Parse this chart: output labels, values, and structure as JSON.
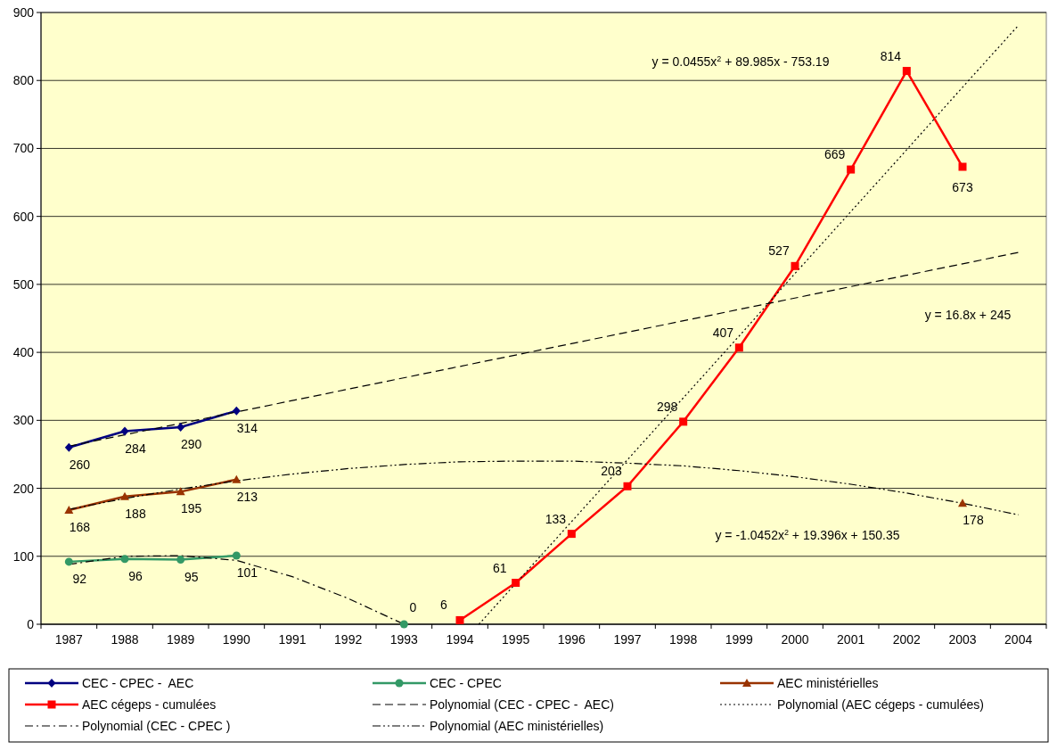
{
  "chart_data": {
    "type": "line",
    "xlim": [
      1986.5,
      2004.5
    ],
    "xticks": [
      1987,
      1988,
      1989,
      1990,
      1991,
      1992,
      1993,
      1994,
      1995,
      1996,
      1997,
      1998,
      1999,
      2000,
      2001,
      2002,
      2003,
      2004
    ],
    "ylim": [
      0,
      900
    ],
    "yticks": [
      0,
      100,
      200,
      300,
      400,
      500,
      600,
      700,
      800,
      900
    ],
    "grid": "y",
    "legend": "bottom",
    "annotations": [
      "y = 0.0455x$^{2}$ + 89.985x - 753.19",
      "y = 16.8x + 245",
      "y = -1.0452x$^{2}$ + 19.396x + 150.35"
    ],
    "series": [
      {
        "name": "CEC - CPEC -  AEC",
        "color": "#000080",
        "marker": "diamond",
        "x": [
          1987,
          1988,
          1989,
          1990
        ],
        "values": [
          260,
          284,
          290,
          314
        ],
        "value_labels": [
          "260",
          "284",
          "290",
          "314"
        ]
      },
      {
        "name": "CEC - CPEC",
        "color": "#339966",
        "marker": "circle",
        "x": [
          1987,
          1988,
          1989,
          1990,
          1991,
          1993
        ],
        "values": [
          92,
          96,
          95,
          101,
          null,
          0
        ],
        "value_labels": [
          "92",
          "96",
          "95",
          "101",
          null,
          "0"
        ]
      },
      {
        "name": "AEC ministérielles",
        "color": "#993300",
        "marker": "triangle",
        "x": [
          1987,
          1988,
          1989,
          1990,
          1991,
          2003
        ],
        "values": [
          168,
          188,
          195,
          213,
          null,
          178
        ],
        "value_labels": [
          "168",
          "188",
          "195",
          "213",
          null,
          "178"
        ]
      },
      {
        "name": "AEC cégeps - cumulées",
        "color": "#ff0000",
        "marker": "square",
        "x": [
          1994,
          1995,
          1996,
          1997,
          1998,
          1999,
          2000,
          2001,
          2002,
          2003
        ],
        "values": [
          6,
          61,
          133,
          203,
          298,
          407,
          527,
          669,
          814,
          673
        ],
        "value_labels": [
          "6",
          "61",
          "133",
          "203",
          "298",
          "407",
          "527",
          "669",
          "814",
          "673"
        ]
      },
      {
        "name": "Polynomial (CEC - CPEC -  AEC)",
        "color": "#000000",
        "marker": "none",
        "line_style": "dashed",
        "x": [
          1987,
          2004
        ],
        "values": [
          262,
          547
        ]
      },
      {
        "name": "Polynomial (AEC cégeps - cumulées)",
        "color": "#000000",
        "marker": "none",
        "line_style": "dotted",
        "x": [
          1994.34,
          1995,
          1996,
          1997,
          1998,
          1999,
          2000,
          2001,
          2002,
          2003,
          2004
        ],
        "values": [
          0,
          60,
          151,
          242,
          333,
          424,
          516,
          607,
          698,
          790,
          881
        ]
      },
      {
        "name": "Polynomial (CEC - CPEC )",
        "color": "#000000",
        "marker": "none",
        "line_style": "dashdot",
        "x": [
          1987,
          1988,
          1989,
          1990,
          1991,
          1992,
          1993
        ],
        "values": [
          88,
          100,
          101,
          94,
          70,
          38,
          0
        ]
      },
      {
        "name": "Polynomial (AEC ministérielles)",
        "color": "#000000",
        "marker": "none",
        "line_style": "dashdotdot",
        "x": [
          1987,
          1988,
          1989,
          1990,
          1991,
          1992,
          1993,
          1994,
          1995,
          1996,
          1997,
          1998,
          1999,
          2000,
          2001,
          2002,
          2003,
          2004
        ],
        "values": [
          169,
          185,
          199,
          211,
          221,
          229,
          235,
          239,
          240,
          240,
          237,
          233,
          226,
          217,
          206,
          193,
          178,
          161
        ]
      }
    ]
  }
}
